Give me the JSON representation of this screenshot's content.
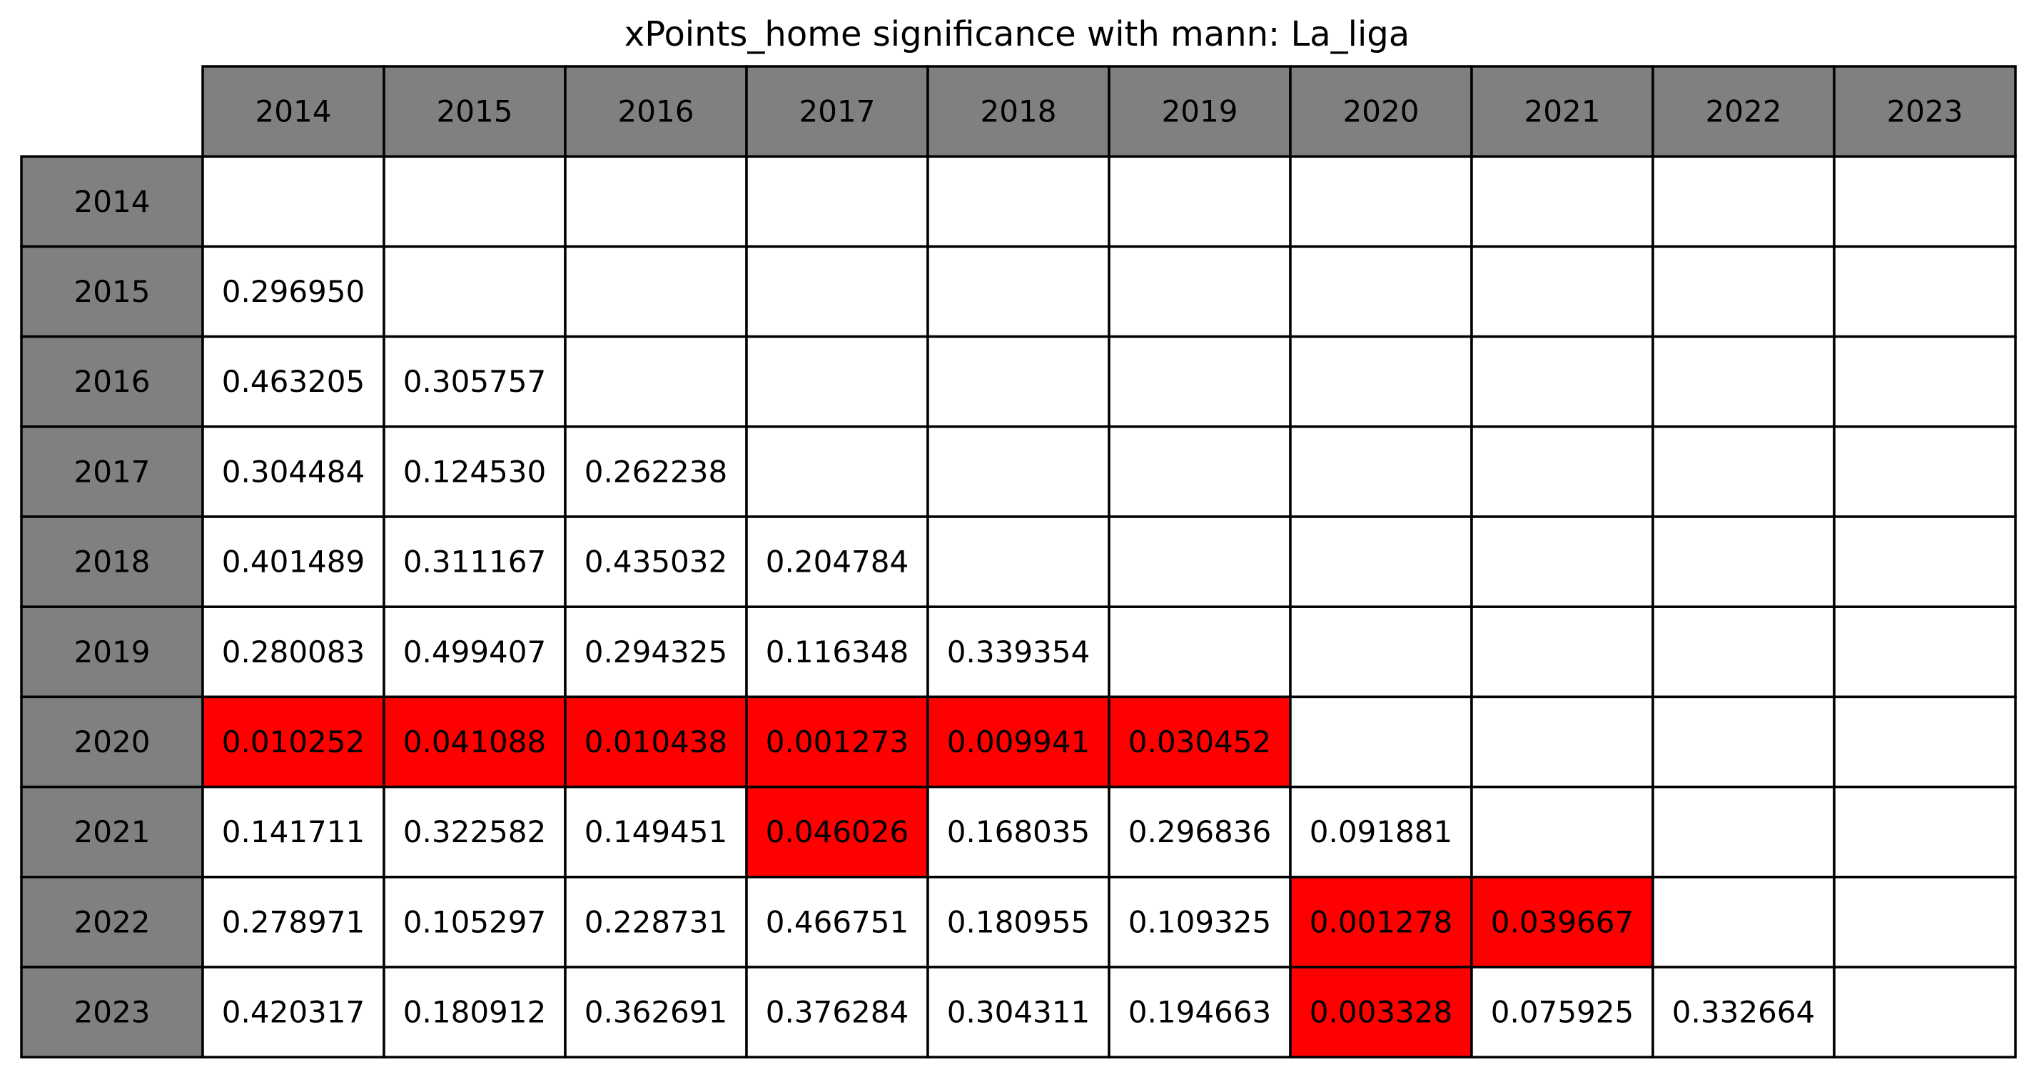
{
  "chart_data": {
    "type": "table",
    "title": "xPoints_home significance with mann: La_liga",
    "column_headers": [
      "2014",
      "2015",
      "2016",
      "2017",
      "2018",
      "2019",
      "2020",
      "2021",
      "2022",
      "2023"
    ],
    "row_headers": [
      "2014",
      "2015",
      "2016",
      "2017",
      "2018",
      "2019",
      "2020",
      "2021",
      "2022",
      "2023"
    ],
    "cells": [
      [
        "",
        "",
        "",
        "",
        "",
        "",
        "",
        "",
        "",
        ""
      ],
      [
        "0.296950",
        "",
        "",
        "",
        "",
        "",
        "",
        "",
        "",
        ""
      ],
      [
        "0.463205",
        "0.305757",
        "",
        "",
        "",
        "",
        "",
        "",
        "",
        ""
      ],
      [
        "0.304484",
        "0.124530",
        "0.262238",
        "",
        "",
        "",
        "",
        "",
        "",
        ""
      ],
      [
        "0.401489",
        "0.311167",
        "0.435032",
        "0.204784",
        "",
        "",
        "",
        "",
        "",
        ""
      ],
      [
        "0.280083",
        "0.499407",
        "0.294325",
        "0.116348",
        "0.339354",
        "",
        "",
        "",
        "",
        ""
      ],
      [
        "0.010252",
        "0.041088",
        "0.010438",
        "0.001273",
        "0.009941",
        "0.030452",
        "",
        "",
        "",
        ""
      ],
      [
        "0.141711",
        "0.322582",
        "0.149451",
        "0.046026",
        "0.168035",
        "0.296836",
        "0.091881",
        "",
        "",
        ""
      ],
      [
        "0.278971",
        "0.105297",
        "0.228731",
        "0.466751",
        "0.180955",
        "0.109325",
        "0.001278",
        "0.039667",
        "",
        ""
      ],
      [
        "0.420317",
        "0.180912",
        "0.362691",
        "0.376284",
        "0.304311",
        "0.194663",
        "0.003328",
        "0.075925",
        "0.332664",
        ""
      ]
    ],
    "highlight_threshold": 0.05
  },
  "colors": {
    "header_fill": "#808080",
    "cell_fill": "#ffffff",
    "highlight_fill": "#ff0000",
    "grid_line": "#000000",
    "text": "#000000"
  }
}
